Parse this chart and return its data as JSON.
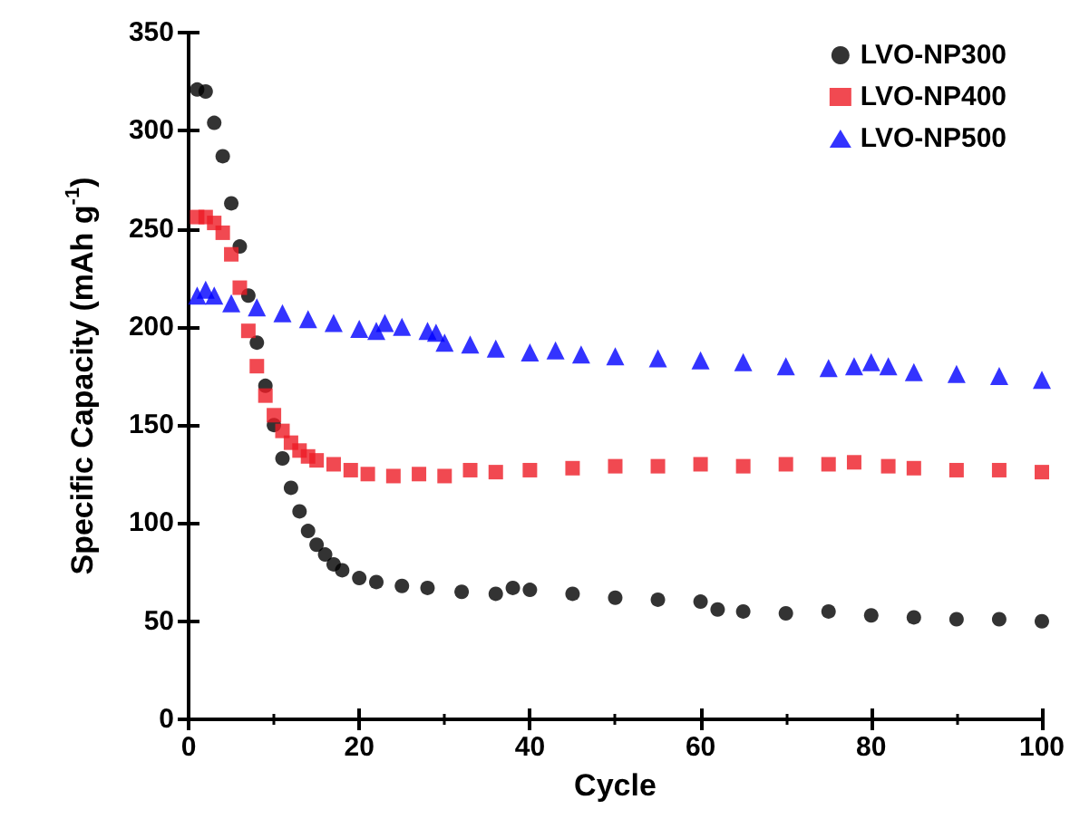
{
  "chart_data": {
    "type": "scatter",
    "xlabel": "Cycle",
    "ylabel": "Specific Capacity (mAh g$^{-1}$)",
    "xlim": [
      0,
      100
    ],
    "xticks": [
      0,
      20,
      40,
      60,
      80,
      100
    ],
    "ylim": [
      0,
      350
    ],
    "yticks": [
      0,
      50,
      100,
      150,
      200,
      250,
      300,
      350
    ],
    "grid": false,
    "legend": "top right",
    "series": [
      {
        "name": "LVO-NP300",
        "color": "#000000",
        "marker": "circle",
        "x": [
          1,
          2,
          3,
          4,
          5,
          6,
          7,
          8,
          9,
          10,
          11,
          12,
          13,
          14,
          15,
          16,
          17,
          18,
          20,
          22,
          25,
          28,
          32,
          36,
          38,
          40,
          45,
          50,
          55,
          60,
          62,
          65,
          70,
          75,
          80,
          85,
          90,
          95,
          100
        ],
        "values": [
          321,
          320,
          304,
          287,
          263,
          241,
          216,
          192,
          170,
          150,
          133,
          118,
          106,
          96,
          89,
          84,
          79,
          76,
          72,
          70,
          68,
          67,
          65,
          64,
          67,
          66,
          64,
          62,
          61,
          60,
          56,
          55,
          54,
          55,
          53,
          52,
          51,
          51,
          50
        ]
      },
      {
        "name": "LVO-NP400",
        "color": "#ee1c25",
        "marker": "square",
        "x": [
          1,
          2,
          3,
          4,
          5,
          6,
          7,
          8,
          9,
          10,
          11,
          12,
          13,
          14,
          15,
          17,
          19,
          21,
          24,
          27,
          30,
          33,
          36,
          40,
          45,
          50,
          55,
          60,
          65,
          70,
          75,
          78,
          82,
          85,
          90,
          95,
          100
        ],
        "values": [
          256,
          256,
          253,
          248,
          237,
          220,
          198,
          180,
          165,
          155,
          147,
          141,
          137,
          134,
          132,
          130,
          127,
          125,
          124,
          125,
          124,
          127,
          126,
          127,
          128,
          129,
          129,
          130,
          129,
          130,
          130,
          131,
          129,
          128,
          127,
          127,
          126
        ]
      },
      {
        "name": "LVO-NP500",
        "color": "#0000ff",
        "marker": "triangle",
        "x": [
          1,
          2,
          3,
          5,
          8,
          11,
          14,
          17,
          20,
          22,
          23,
          25,
          28,
          29,
          30,
          33,
          36,
          40,
          43,
          46,
          50,
          55,
          60,
          65,
          70,
          75,
          78,
          80,
          82,
          85,
          90,
          95,
          100
        ],
        "values": [
          216,
          219,
          216,
          212,
          210,
          207,
          204,
          202,
          199,
          198,
          202,
          200,
          198,
          197,
          192,
          191,
          189,
          187,
          188,
          186,
          185,
          184,
          183,
          182,
          180,
          179,
          180,
          182,
          180,
          177,
          176,
          175,
          173
        ]
      }
    ]
  }
}
